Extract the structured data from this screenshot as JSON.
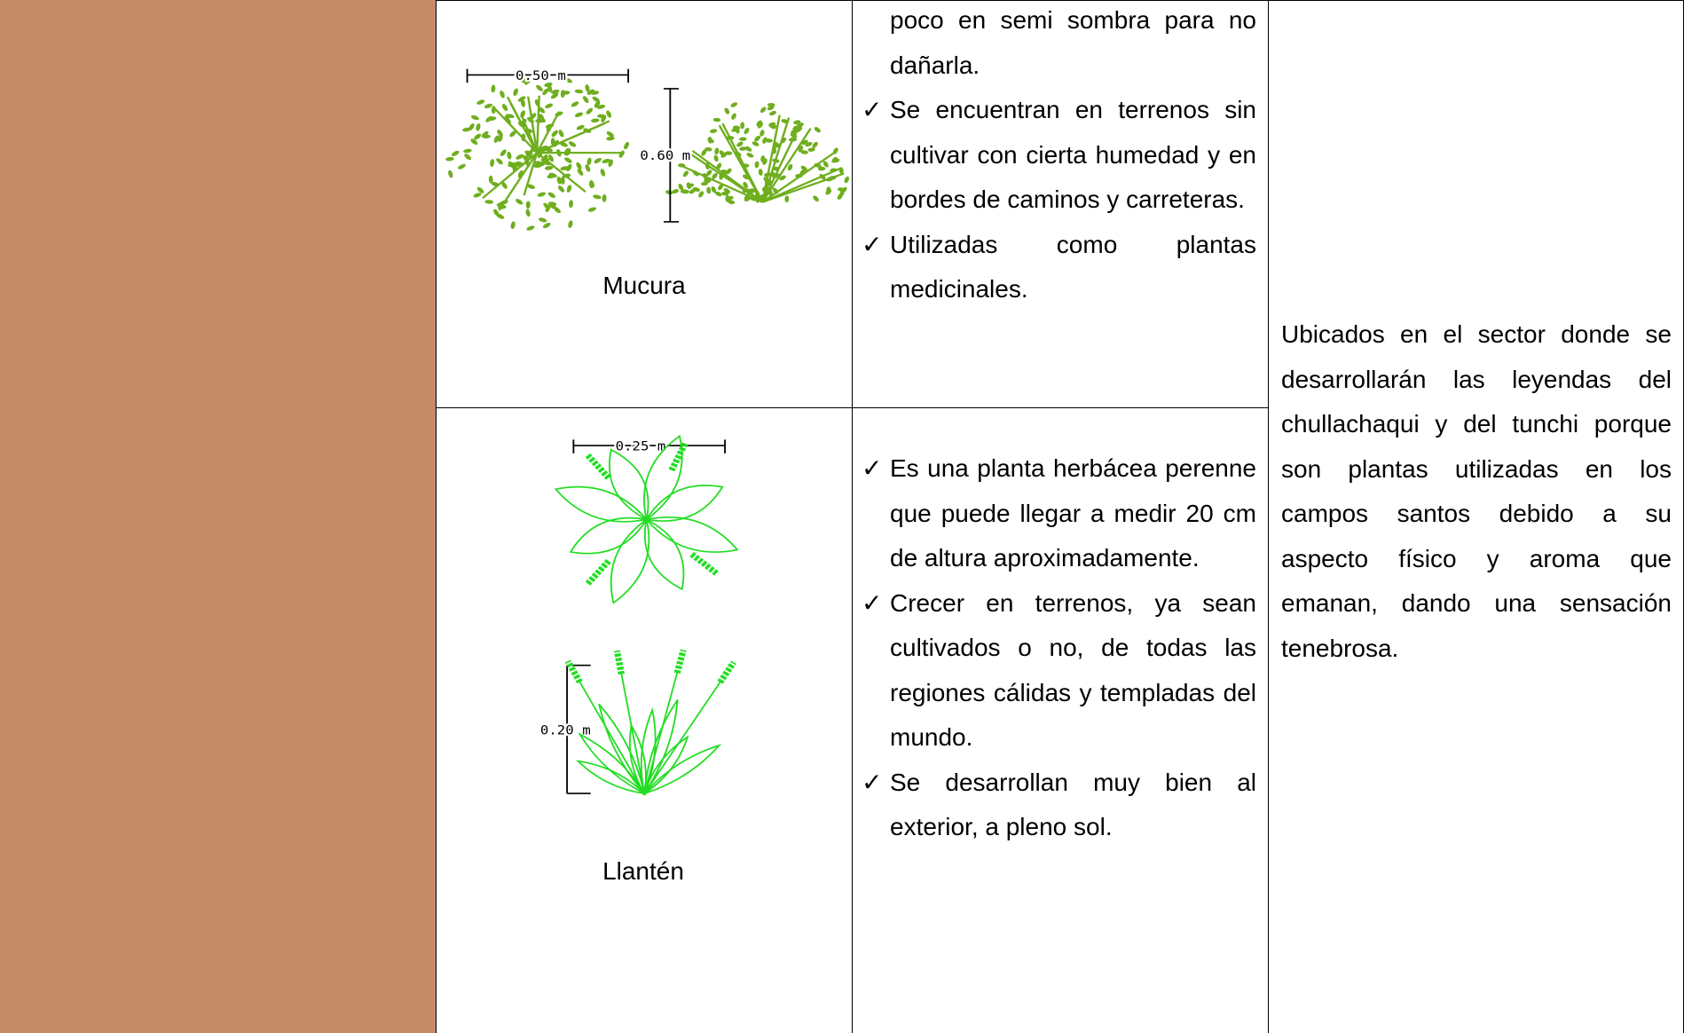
{
  "table": {
    "rows": [
      {
        "image": {
          "label": "Mucura",
          "dimensions": [
            "0.50 m",
            "0.60 m"
          ]
        },
        "description": [
          "poco en semi sombra para no dañarla.",
          "Se encuentran en terrenos sin cultivar con cierta humedad y en bordes de caminos y carreteras.",
          "Utilizadas como plantas medicinales."
        ]
      },
      {
        "image": {
          "label": "Llantén",
          "dimensions": [
            "0.25 m",
            "0.20 m"
          ]
        },
        "description": [
          "Es una planta herbácea perenne que puede llegar a medir 20 cm de altura aproximadamente.",
          "Crecer en terrenos, ya sean cultivados o no, de todas las regiones cálidas y templadas del mundo.",
          "Se desarrollan muy bien al exterior, a pleno sol."
        ]
      }
    ],
    "remarks": "Ubicados en el sector donde se desarrollarán las leyendas del chullachaqui y del tunchi porque son plantas utilizadas en los campos santos debido a su aspecto físico y aroma que emanan, dando una sensación tenebrosa."
  }
}
